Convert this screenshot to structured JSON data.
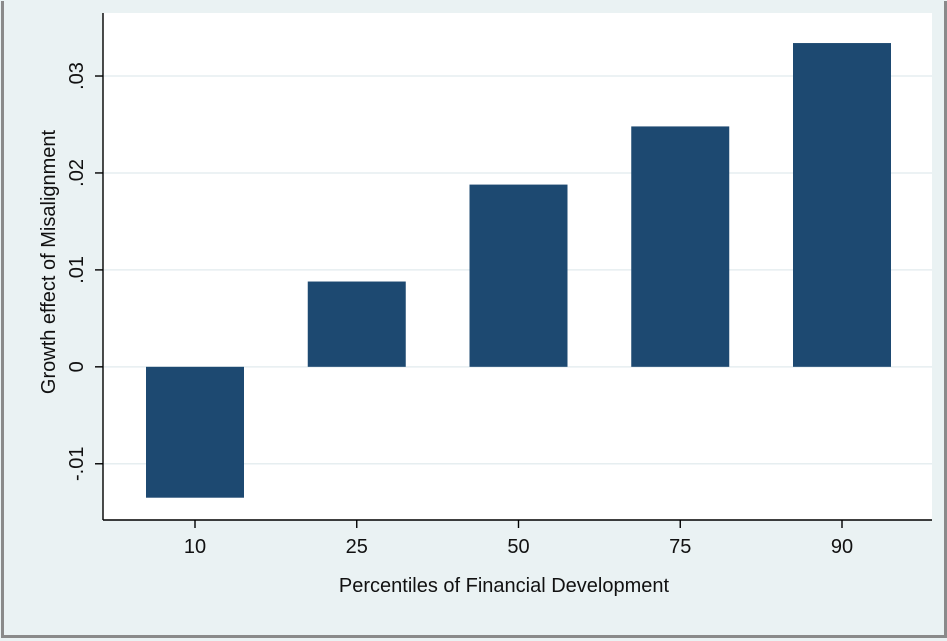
{
  "chart_data": {
    "type": "bar",
    "categories": [
      "10",
      "25",
      "50",
      "75",
      "90"
    ],
    "values": [
      -0.0135,
      0.0088,
      0.0188,
      0.0248,
      0.0334
    ],
    "xlabel": "Percentiles of Financial Development",
    "ylabel": "Growth effect of Misalignment",
    "yticks": [
      -0.01,
      0,
      0.01,
      0.02,
      0.03
    ],
    "ytick_labels": [
      "-.01",
      "0",
      ".01",
      ".02",
      ".03"
    ],
    "ylim": [
      -0.0158,
      0.0365
    ],
    "grid": true,
    "bar_color": "#1d4971",
    "plot_background": "#ffffff",
    "figure_background": "#eaf2f3",
    "grid_color": "#e6eef0"
  }
}
